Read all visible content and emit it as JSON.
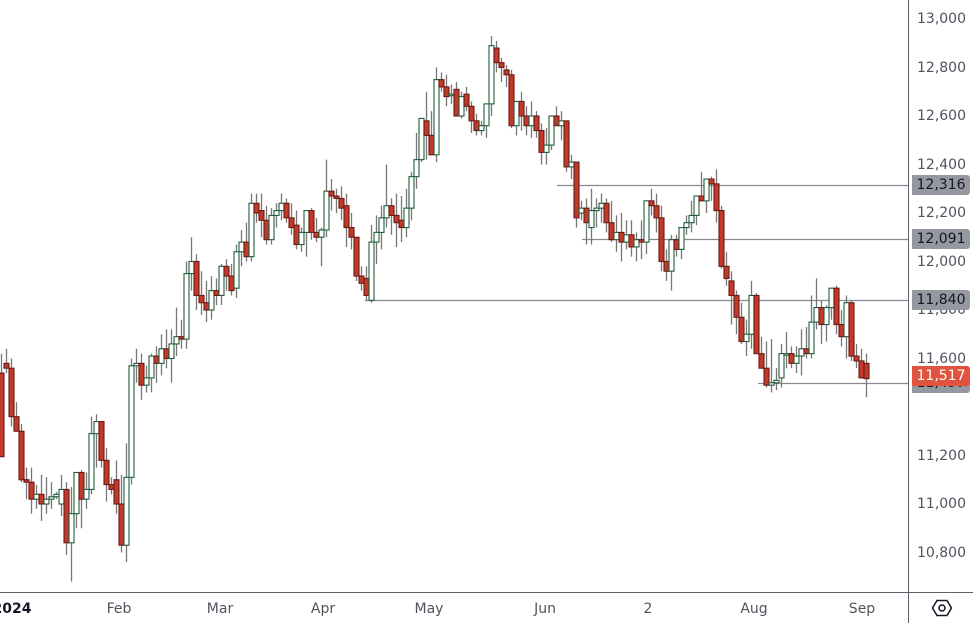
{
  "chart_data": {
    "type": "candlestick",
    "title": "",
    "xlabel": "",
    "ylabel": "",
    "ylim": [
      10600,
      13080
    ],
    "grid": false,
    "colors": {
      "up_border": "#1e5e3a",
      "up_fill": "#ffffff",
      "down_border": "#6b1a14",
      "down_fill": "#c0392b",
      "wick": "#777777",
      "level_line": "#888a92",
      "last_price": "#e0533f"
    },
    "price_axis": {
      "ticks": [
        "13,000",
        "12,800",
        "12,600",
        "12,400",
        "12,200",
        "12,000",
        "11,800",
        "11,600",
        "11,200",
        "11,000",
        "10,800"
      ],
      "tick_values": [
        13000,
        12800,
        12600,
        12400,
        12200,
        12000,
        11800,
        11600,
        11200,
        11000,
        10800
      ]
    },
    "time_axis": {
      "labels": [
        {
          "text": "2024",
          "x": 12,
          "year": true
        },
        {
          "text": "Feb",
          "x": 119
        },
        {
          "text": "Mar",
          "x": 220
        },
        {
          "text": "Apr",
          "x": 323
        },
        {
          "text": "May",
          "x": 429
        },
        {
          "text": "Jun",
          "x": 545
        },
        {
          "text": "2",
          "x": 648
        },
        {
          "text": "Aug",
          "x": 754
        },
        {
          "text": "Sep",
          "x": 862
        }
      ]
    },
    "levels": [
      {
        "label": "12,316",
        "value": 12316,
        "x_start": 557
      },
      {
        "label": "12,091",
        "value": 12091,
        "x_start": 582
      },
      {
        "label": "11,840",
        "value": 11840,
        "x_start": 365
      },
      {
        "label": "11,497",
        "value": 11497,
        "x_start": 758
      }
    ],
    "last_price": {
      "label": "11,517",
      "value": 11517
    },
    "candles": [
      [
        1,
        11540,
        11620,
        11200,
        11195
      ],
      [
        6,
        11580,
        11640,
        11540,
        11560
      ],
      [
        11,
        11560,
        11600,
        11320,
        11360
      ],
      [
        16,
        11360,
        11420,
        11300,
        11300
      ],
      [
        21,
        11300,
        11330,
        11090,
        11100
      ],
      [
        26,
        11100,
        11150,
        11020,
        11090
      ],
      [
        31,
        11090,
        11150,
        10960,
        11020
      ],
      [
        36,
        11020,
        11080,
        10980,
        11040
      ],
      [
        41,
        11040,
        11120,
        10930,
        11000
      ],
      [
        46,
        11000,
        11110,
        10960,
        11020
      ],
      [
        51,
        11020,
        11090,
        10980,
        11030
      ],
      [
        56,
        11030,
        11050,
        11020,
        11040
      ],
      [
        61,
        11000,
        11120,
        10950,
        11060
      ],
      [
        66,
        11060,
        11090,
        10790,
        10840
      ],
      [
        71,
        10840,
        11070,
        10680,
        10960
      ],
      [
        76,
        10960,
        11120,
        10900,
        11130
      ],
      [
        81,
        11130,
        11140,
        10900,
        11020
      ],
      [
        86,
        11020,
        11130,
        10980,
        11060
      ],
      [
        91,
        11060,
        11360,
        11040,
        11290
      ],
      [
        96,
        11290,
        11370,
        11150,
        11340
      ],
      [
        101,
        11340,
        11340,
        11150,
        11180
      ],
      [
        106,
        11180,
        11230,
        11010,
        11080
      ],
      [
        111,
        11080,
        11110,
        11040,
        11060
      ],
      [
        116,
        11100,
        11180,
        10960,
        11000
      ],
      [
        121,
        11000,
        11120,
        10800,
        10830
      ],
      [
        126,
        10830,
        11250,
        10760,
        11110
      ],
      [
        131,
        11110,
        11600,
        11080,
        11570
      ],
      [
        136,
        11570,
        11640,
        11500,
        11580
      ],
      [
        141,
        11580,
        11620,
        11430,
        11490
      ],
      [
        146,
        11490,
        11570,
        11460,
        11520
      ],
      [
        151,
        11520,
        11620,
        11460,
        11610
      ],
      [
        156,
        11610,
        11650,
        11500,
        11580
      ],
      [
        161,
        11580,
        11700,
        11530,
        11640
      ],
      [
        166,
        11640,
        11720,
        11560,
        11600
      ],
      [
        171,
        11600,
        11720,
        11500,
        11660
      ],
      [
        176,
        11660,
        11810,
        11610,
        11690
      ],
      [
        181,
        11690,
        11760,
        11640,
        11680
      ],
      [
        186,
        11680,
        12000,
        11640,
        11950
      ],
      [
        191,
        11950,
        12100,
        11880,
        12000
      ],
      [
        196,
        12000,
        12030,
        11800,
        11860
      ],
      [
        201,
        11860,
        11960,
        11780,
        11830
      ],
      [
        206,
        11830,
        11920,
        11750,
        11800
      ],
      [
        211,
        11800,
        11940,
        11760,
        11880
      ],
      [
        216,
        11880,
        11930,
        11820,
        11860
      ],
      [
        221,
        11860,
        11990,
        11820,
        11980
      ],
      [
        226,
        11980,
        12010,
        11880,
        11940
      ],
      [
        231,
        11940,
        11990,
        11860,
        11880
      ],
      [
        236,
        11890,
        12070,
        11850,
        12040
      ],
      [
        241,
        12040,
        12130,
        11980,
        12080
      ],
      [
        246,
        12080,
        12160,
        12000,
        12020
      ],
      [
        251,
        12020,
        12280,
        12000,
        12240
      ],
      [
        256,
        12240,
        12280,
        12160,
        12200
      ],
      [
        261,
        12210,
        12280,
        12100,
        12170
      ],
      [
        266,
        12170,
        12230,
        12070,
        12090
      ],
      [
        271,
        12090,
        12220,
        12070,
        12190
      ],
      [
        276,
        12190,
        12240,
        12140,
        12210
      ],
      [
        281,
        12210,
        12280,
        12170,
        12240
      ],
      [
        286,
        12240,
        12260,
        12160,
        12180
      ],
      [
        291,
        12180,
        12240,
        12110,
        12140
      ],
      [
        296,
        12150,
        12210,
        12050,
        12070
      ],
      [
        301,
        12070,
        12140,
        12040,
        12120
      ],
      [
        306,
        12120,
        12200,
        12020,
        12210
      ],
      [
        311,
        12210,
        12220,
        12090,
        12120
      ],
      [
        316,
        12120,
        12180,
        12080,
        12100
      ],
      [
        321,
        12100,
        12140,
        11980,
        12130
      ],
      [
        326,
        12130,
        12420,
        12100,
        12290
      ],
      [
        331,
        12290,
        12340,
        12210,
        12270
      ],
      [
        336,
        12270,
        12300,
        12200,
        12260
      ],
      [
        341,
        12260,
        12310,
        12170,
        12220
      ],
      [
        346,
        12230,
        12280,
        12060,
        12140
      ],
      [
        351,
        12140,
        12200,
        12050,
        12100
      ],
      [
        356,
        12100,
        12100,
        11920,
        11940
      ],
      [
        361,
        11940,
        11980,
        11880,
        11910
      ],
      [
        366,
        11930,
        11980,
        11840,
        11860
      ],
      [
        371,
        11840,
        12150,
        11830,
        12080
      ],
      [
        376,
        12080,
        12190,
        11990,
        12120
      ],
      [
        381,
        12120,
        12230,
        12050,
        12180
      ],
      [
        386,
        12180,
        12400,
        12140,
        12230
      ],
      [
        391,
        12230,
        12260,
        12110,
        12190
      ],
      [
        396,
        12190,
        12280,
        12060,
        12160
      ],
      [
        401,
        12170,
        12270,
        12080,
        12140
      ],
      [
        406,
        12140,
        12300,
        12100,
        12220
      ],
      [
        411,
        12220,
        12370,
        12170,
        12350
      ],
      [
        416,
        12350,
        12530,
        12300,
        12420
      ],
      [
        421,
        12420,
        12580,
        12410,
        12590
      ],
      [
        426,
        12580,
        12700,
        12420,
        12520
      ],
      [
        431,
        12520,
        12620,
        12450,
        12440
      ],
      [
        436,
        12440,
        12800,
        12410,
        12750
      ],
      [
        441,
        12750,
        12780,
        12700,
        12720
      ],
      [
        446,
        12720,
        12770,
        12640,
        12680
      ],
      [
        451,
        12690,
        12730,
        12650,
        12690
      ],
      [
        456,
        12710,
        12740,
        12600,
        12600
      ],
      [
        461,
        12600,
        12700,
        12590,
        12680
      ],
      [
        466,
        12690,
        12720,
        12620,
        12640
      ],
      [
        471,
        12640,
        12660,
        12530,
        12580
      ],
      [
        476,
        12580,
        12610,
        12520,
        12540
      ],
      [
        481,
        12540,
        12580,
        12520,
        12560
      ],
      [
        486,
        12560,
        12620,
        12510,
        12650
      ],
      [
        491,
        12650,
        12930,
        12600,
        12890
      ],
      [
        496,
        12880,
        12910,
        12780,
        12820
      ],
      [
        501,
        12820,
        12840,
        12740,
        12800
      ],
      [
        506,
        12790,
        12810,
        12720,
        12770
      ],
      [
        511,
        12770,
        12790,
        12550,
        12560
      ],
      [
        516,
        12560,
        12620,
        12520,
        12660
      ],
      [
        521,
        12660,
        12700,
        12540,
        12600
      ],
      [
        526,
        12600,
        12640,
        12520,
        12560
      ],
      [
        531,
        12560,
        12660,
        12510,
        12600
      ],
      [
        536,
        12600,
        12620,
        12510,
        12540
      ],
      [
        541,
        12540,
        12570,
        12400,
        12450
      ],
      [
        546,
        12450,
        12550,
        12400,
        12480
      ],
      [
        551,
        12480,
        12590,
        12460,
        12600
      ],
      [
        556,
        12600,
        12640,
        12560,
        12560
      ],
      [
        561,
        12560,
        12620,
        12500,
        12580
      ],
      [
        566,
        12580,
        12580,
        12370,
        12390
      ],
      [
        571,
        12390,
        12440,
        12340,
        12410
      ],
      [
        576,
        12410,
        12410,
        12140,
        12180
      ],
      [
        581,
        12200,
        12250,
        12170,
        12220
      ],
      [
        586,
        12220,
        12260,
        12070,
        12160
      ],
      [
        591,
        12140,
        12300,
        12070,
        12210
      ],
      [
        596,
        12210,
        12260,
        12140,
        12220
      ],
      [
        601,
        12220,
        12280,
        12160,
        12240
      ],
      [
        606,
        12240,
        12260,
        12120,
        12160
      ],
      [
        611,
        12160,
        12250,
        12080,
        12090
      ],
      [
        616,
        12090,
        12190,
        12040,
        12120
      ],
      [
        621,
        12120,
        12200,
        12000,
        12080
      ],
      [
        626,
        12080,
        12170,
        12050,
        12110
      ],
      [
        631,
        12110,
        12170,
        12020,
        12060
      ],
      [
        636,
        12060,
        12120,
        12000,
        12090
      ],
      [
        641,
        12090,
        12170,
        12010,
        12080
      ],
      [
        646,
        12080,
        12230,
        12030,
        12250
      ],
      [
        651,
        12250,
        12300,
        12190,
        12230
      ],
      [
        656,
        12230,
        12280,
        12120,
        12180
      ],
      [
        661,
        12180,
        12230,
        11960,
        12000
      ],
      [
        666,
        12000,
        12050,
        11920,
        11960
      ],
      [
        671,
        11960,
        12110,
        11880,
        12090
      ],
      [
        676,
        12090,
        12110,
        12020,
        12050
      ],
      [
        681,
        12050,
        12140,
        12010,
        12140
      ],
      [
        686,
        12140,
        12190,
        12110,
        12160
      ],
      [
        691,
        12160,
        12250,
        12120,
        12190
      ],
      [
        696,
        12190,
        12270,
        12150,
        12270
      ],
      [
        701,
        12270,
        12370,
        12260,
        12250
      ],
      [
        706,
        12250,
        12340,
        12200,
        12340
      ],
      [
        711,
        12340,
        12350,
        12250,
        12320
      ],
      [
        716,
        12320,
        12380,
        12160,
        12210
      ],
      [
        721,
        12210,
        12230,
        11970,
        11980
      ],
      [
        726,
        11980,
        12040,
        11900,
        11930
      ],
      [
        731,
        11920,
        11960,
        11740,
        11860
      ],
      [
        736,
        11860,
        11880,
        11700,
        11770
      ],
      [
        741,
        11770,
        11830,
        11660,
        11670
      ],
      [
        746,
        11670,
        11760,
        11610,
        11700
      ],
      [
        751,
        11700,
        11920,
        11640,
        11860
      ],
      [
        756,
        11860,
        11870,
        11620,
        11620
      ],
      [
        761,
        11620,
        11690,
        11560,
        11560
      ],
      [
        766,
        11560,
        11670,
        11480,
        11490
      ],
      [
        771,
        11490,
        11680,
        11460,
        11500
      ],
      [
        776,
        11500,
        11560,
        11470,
        11510
      ],
      [
        781,
        11520,
        11660,
        11480,
        11620
      ],
      [
        786,
        11620,
        11710,
        11560,
        11620
      ],
      [
        791,
        11620,
        11650,
        11560,
        11580
      ],
      [
        796,
        11580,
        11650,
        11540,
        11610
      ],
      [
        801,
        11610,
        11720,
        11530,
        11640
      ],
      [
        806,
        11640,
        11730,
        11600,
        11620
      ],
      [
        811,
        11620,
        11860,
        11600,
        11750
      ],
      [
        816,
        11750,
        11930,
        11720,
        11810
      ],
      [
        821,
        11810,
        11840,
        11660,
        11740
      ],
      [
        826,
        11740,
        11820,
        11670,
        11810
      ],
      [
        831,
        11810,
        11880,
        11760,
        11890
      ],
      [
        836,
        11890,
        11900,
        11700,
        11740
      ],
      [
        841,
        11740,
        11800,
        11650,
        11690
      ],
      [
        846,
        11690,
        11860,
        11600,
        11830
      ],
      [
        851,
        11830,
        11840,
        11590,
        11610
      ],
      [
        856,
        11610,
        11660,
        11560,
        11590
      ],
      [
        861,
        11590,
        11640,
        11530,
        11520
      ],
      [
        866,
        11580,
        11620,
        11440,
        11517
      ]
    ]
  },
  "ui": {
    "settings_icon": "hexagon-settings-icon"
  }
}
